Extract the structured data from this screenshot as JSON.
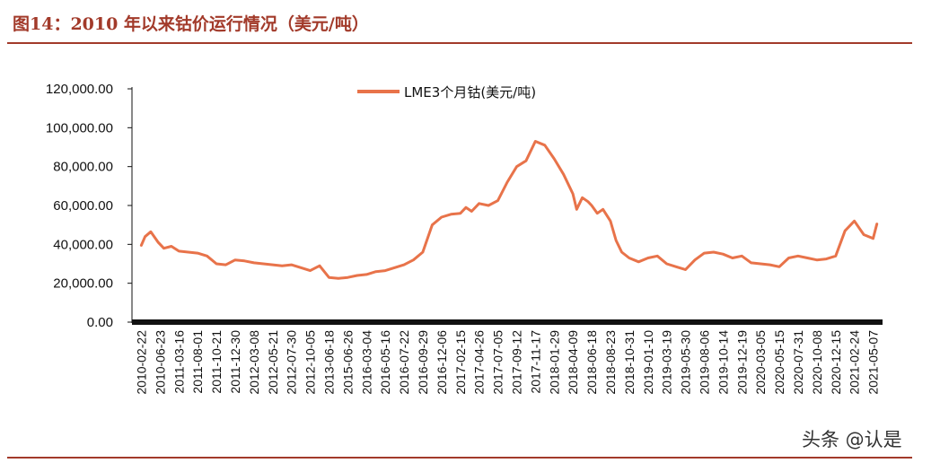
{
  "header": {
    "title": "图14：2010 年以来钴价运行情况（美元/吨）",
    "accent_color": "#a23a2a"
  },
  "watermark": {
    "text": "头条 @认是"
  },
  "chart_data": {
    "type": "line",
    "title": "",
    "xlabel": "",
    "ylabel": "",
    "ylim": [
      0,
      120000
    ],
    "y_ticks": [
      "0.00",
      "20,000.00",
      "40,000.00",
      "60,000.00",
      "80,000.00",
      "100,000.00",
      "120,000.00"
    ],
    "grid": false,
    "legend_position": "top-center",
    "x_ticks": [
      "2010-02-22",
      "2010-06-23",
      "2011-03-16",
      "2011-08-01",
      "2011-10-21",
      "2011-12-30",
      "2012-03-08",
      "2012-05-21",
      "2012-07-30",
      "2012-10-05",
      "2013-06-18",
      "2015-06-26",
      "2016-03-04",
      "2016-05-16",
      "2016-07-22",
      "2016-09-29",
      "2016-12-06",
      "2017-02-15",
      "2017-04-26",
      "2017-07-05",
      "2017-09-12",
      "2017-11-17",
      "2018-01-29",
      "2018-04-09",
      "2018-06-18",
      "2018-08-23",
      "2018-10-31",
      "2019-01-10",
      "2019-03-19",
      "2019-05-30",
      "2019-08-06",
      "2019-10-14",
      "2019-12-19",
      "2020-03-05",
      "2020-05-15",
      "2020-07-31",
      "2020-10-08",
      "2020-12-15",
      "2021-02-24",
      "2021-05-07"
    ],
    "series": [
      {
        "name": "LME3个月钴(美元/吨)",
        "color": "#e8734a",
        "x": [
          0,
          0.2,
          0.5,
          0.9,
          1.2,
          1.6,
          2,
          2.5,
          3,
          3.5,
          4,
          4.5,
          5,
          5.5,
          6,
          6.5,
          7,
          7.5,
          8,
          8.5,
          9,
          9.5,
          10,
          10.5,
          11,
          11.5,
          12,
          12.5,
          13,
          13.5,
          14,
          14.5,
          15,
          15.5,
          16,
          16.5,
          17,
          17.3,
          17.6,
          18,
          18.5,
          19,
          19.5,
          20,
          20.5,
          21,
          21.5,
          22,
          22.5,
          23,
          23.2,
          23.5,
          23.8,
          24,
          24.3,
          24.6,
          25,
          25.3,
          25.6,
          26,
          26.5,
          27,
          27.5,
          28,
          28.5,
          29,
          29.5,
          30,
          30.5,
          31,
          31.5,
          32,
          32.5,
          33,
          33.5,
          34,
          34.5,
          35,
          35.5,
          36,
          36.5,
          37,
          37.5,
          38,
          38.5,
          39,
          39.2
        ],
        "values": [
          39500,
          44000,
          46500,
          41000,
          38000,
          39000,
          36500,
          36000,
          35500,
          34000,
          30000,
          29500,
          32000,
          31500,
          30500,
          30000,
          29500,
          29000,
          29500,
          28000,
          26500,
          29000,
          23000,
          22500,
          23000,
          24000,
          24500,
          26000,
          26500,
          28000,
          29500,
          32000,
          36000,
          50000,
          54000,
          55500,
          56000,
          59000,
          57000,
          61000,
          60000,
          62500,
          72000,
          80000,
          83000,
          93000,
          91000,
          84000,
          76000,
          66000,
          58000,
          64000,
          62000,
          60000,
          56000,
          58000,
          52000,
          42000,
          36000,
          33000,
          31000,
          33000,
          34000,
          30000,
          28500,
          27000,
          32000,
          35500,
          36000,
          35000,
          33000,
          34000,
          30500,
          30000,
          29500,
          28500,
          33000,
          34000,
          33000,
          32000,
          32500,
          34000,
          47000,
          52000,
          45000,
          43000,
          50500
        ]
      }
    ]
  }
}
